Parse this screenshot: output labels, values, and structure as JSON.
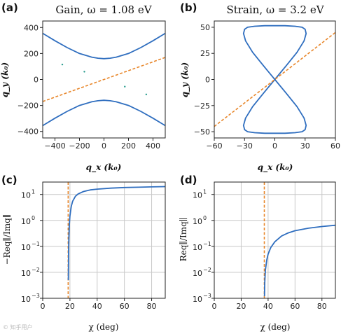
{
  "watermark": "© 知乎用户",
  "chart_data": [
    {
      "panel": "(a)",
      "type": "line",
      "title": "Gain, ω = 1.08 eV",
      "xlabel": "q_x (k₀)",
      "ylabel": "q_y (k₀)",
      "xlim": [
        -500,
        500
      ],
      "ylim": [
        -450,
        450
      ],
      "xticks": [
        -400,
        -200,
        0,
        200,
        400
      ],
      "yticks": [
        -400,
        -200,
        0,
        200,
        400
      ],
      "grid": false,
      "series": [
        {
          "role": "upper branch",
          "color": "#2f6ebf",
          "style": "solid",
          "x": [
            -500,
            -400,
            -300,
            -200,
            -100,
            -50,
            0,
            50,
            100,
            200,
            300,
            400,
            500
          ],
          "y": [
            355,
            298,
            245,
            200,
            172,
            164,
            160,
            164,
            172,
            200,
            245,
            298,
            355
          ]
        },
        {
          "role": "lower branch",
          "color": "#2f6ebf",
          "style": "solid",
          "x": [
            -500,
            -400,
            -300,
            -200,
            -100,
            -50,
            0,
            50,
            100,
            200,
            300,
            400,
            500
          ],
          "y": [
            -355,
            -298,
            -245,
            -200,
            -172,
            -164,
            -160,
            -164,
            -172,
            -200,
            -245,
            -298,
            -355
          ]
        },
        {
          "role": "asymptote",
          "color": "#e8862a",
          "style": "dashed",
          "x": [
            -500,
            500
          ],
          "y": [
            -170,
            170
          ]
        }
      ],
      "points": [
        {
          "x": -340,
          "y": 115,
          "color": "#2a9d8f"
        },
        {
          "x": -160,
          "y": 60,
          "color": "#2a9d8f"
        },
        {
          "x": 170,
          "y": -55,
          "color": "#2a9d8f"
        },
        {
          "x": 345,
          "y": -115,
          "color": "#2a9d8f"
        }
      ]
    },
    {
      "panel": "(b)",
      "type": "line",
      "title": "Strain, ω = 3.2 eV",
      "xlabel": "q_x (k₀)",
      "ylabel": "q_y (k₀)",
      "xlim": [
        -60,
        60
      ],
      "ylim": [
        -56,
        56
      ],
      "xticks": [
        -60,
        -30,
        0,
        30,
        60
      ],
      "yticks": [
        -50,
        -25,
        0,
        25,
        50
      ],
      "grid": false,
      "series": [
        {
          "role": "figure-eight contour",
          "color": "#2f6ebf",
          "style": "solid",
          "x": [
            0,
            12,
            22,
            29,
            31,
            30,
            27,
            20,
            10,
            0,
            -10,
            -20,
            -27,
            -30,
            -31,
            -29,
            -22,
            -12,
            0,
            12,
            22,
            29,
            31,
            30,
            27,
            20,
            10,
            0,
            -10,
            -20,
            -27,
            -30,
            -31,
            -29,
            -22,
            -12,
            0
          ],
          "y": [
            0,
            14,
            26,
            37,
            44,
            48,
            50,
            51,
            51.5,
            51.5,
            51.5,
            51,
            50,
            48,
            44,
            37,
            26,
            14,
            0,
            -14,
            -26,
            -37,
            -44,
            -48,
            -50,
            -51,
            -51.5,
            -51.5,
            -51.5,
            -51,
            -50,
            -48,
            -44,
            -37,
            -26,
            -14,
            0
          ]
        },
        {
          "role": "asymptote",
          "color": "#e8862a",
          "style": "dashed",
          "x": [
            -60,
            60
          ],
          "y": [
            -45,
            45
          ]
        }
      ]
    },
    {
      "panel": "(c)",
      "type": "line",
      "xlabel": "χ (deg)",
      "ylabel": "−Req∥/Imq∥",
      "xlim": [
        0,
        90
      ],
      "ylim": [
        0.001,
        30
      ],
      "yscale": "log",
      "xticks": [
        0,
        20,
        40,
        60,
        80
      ],
      "yticks": [
        {
          "base": "10",
          "exp": "1",
          "v": 10
        },
        {
          "base": "10",
          "exp": "0",
          "v": 1
        },
        {
          "base": "10",
          "exp": "−1",
          "v": 0.1
        },
        {
          "base": "10",
          "exp": "−2",
          "v": 0.01
        },
        {
          "base": "10",
          "exp": "−3",
          "v": 0.001
        }
      ],
      "grid": true,
      "vline": {
        "x": 18.7,
        "color": "#e8862a",
        "style": "dashed"
      },
      "series": [
        {
          "color": "#2f6ebf",
          "style": "solid",
          "x": [
            18.8,
            18.9,
            19.0,
            19.2,
            19.5,
            20,
            21,
            22,
            24,
            26,
            30,
            35,
            40,
            50,
            60,
            70,
            80,
            90
          ],
          "y": [
            0.005,
            0.02,
            0.06,
            0.2,
            0.6,
            1.5,
            3.5,
            5.5,
            8.5,
            10.5,
            13,
            15,
            16,
            17.5,
            18.5,
            19,
            19.5,
            20
          ]
        }
      ]
    },
    {
      "panel": "(d)",
      "type": "line",
      "xlabel": "χ (deg)",
      "ylabel": "Req∥/Imq∥",
      "xlim": [
        0,
        90
      ],
      "ylim": [
        0.001,
        30
      ],
      "yscale": "log",
      "xticks": [
        0,
        20,
        40,
        60,
        80
      ],
      "yticks": [
        {
          "base": "10",
          "exp": "1",
          "v": 10
        },
        {
          "base": "10",
          "exp": "0",
          "v": 1
        },
        {
          "base": "10",
          "exp": "−1",
          "v": 0.1
        },
        {
          "base": "10",
          "exp": "−2",
          "v": 0.01
        },
        {
          "base": "10",
          "exp": "−3",
          "v": 0.001
        }
      ],
      "grid": true,
      "vline": {
        "x": 37.2,
        "color": "#e8862a",
        "style": "dashed"
      },
      "series": [
        {
          "color": "#2f6ebf",
          "style": "solid",
          "x": [
            37.3,
            37.5,
            38,
            39,
            40,
            42,
            45,
            50,
            55,
            60,
            70,
            80,
            90
          ],
          "y": [
            0.0012,
            0.004,
            0.012,
            0.03,
            0.05,
            0.09,
            0.15,
            0.25,
            0.33,
            0.4,
            0.5,
            0.58,
            0.65
          ]
        }
      ]
    }
  ]
}
